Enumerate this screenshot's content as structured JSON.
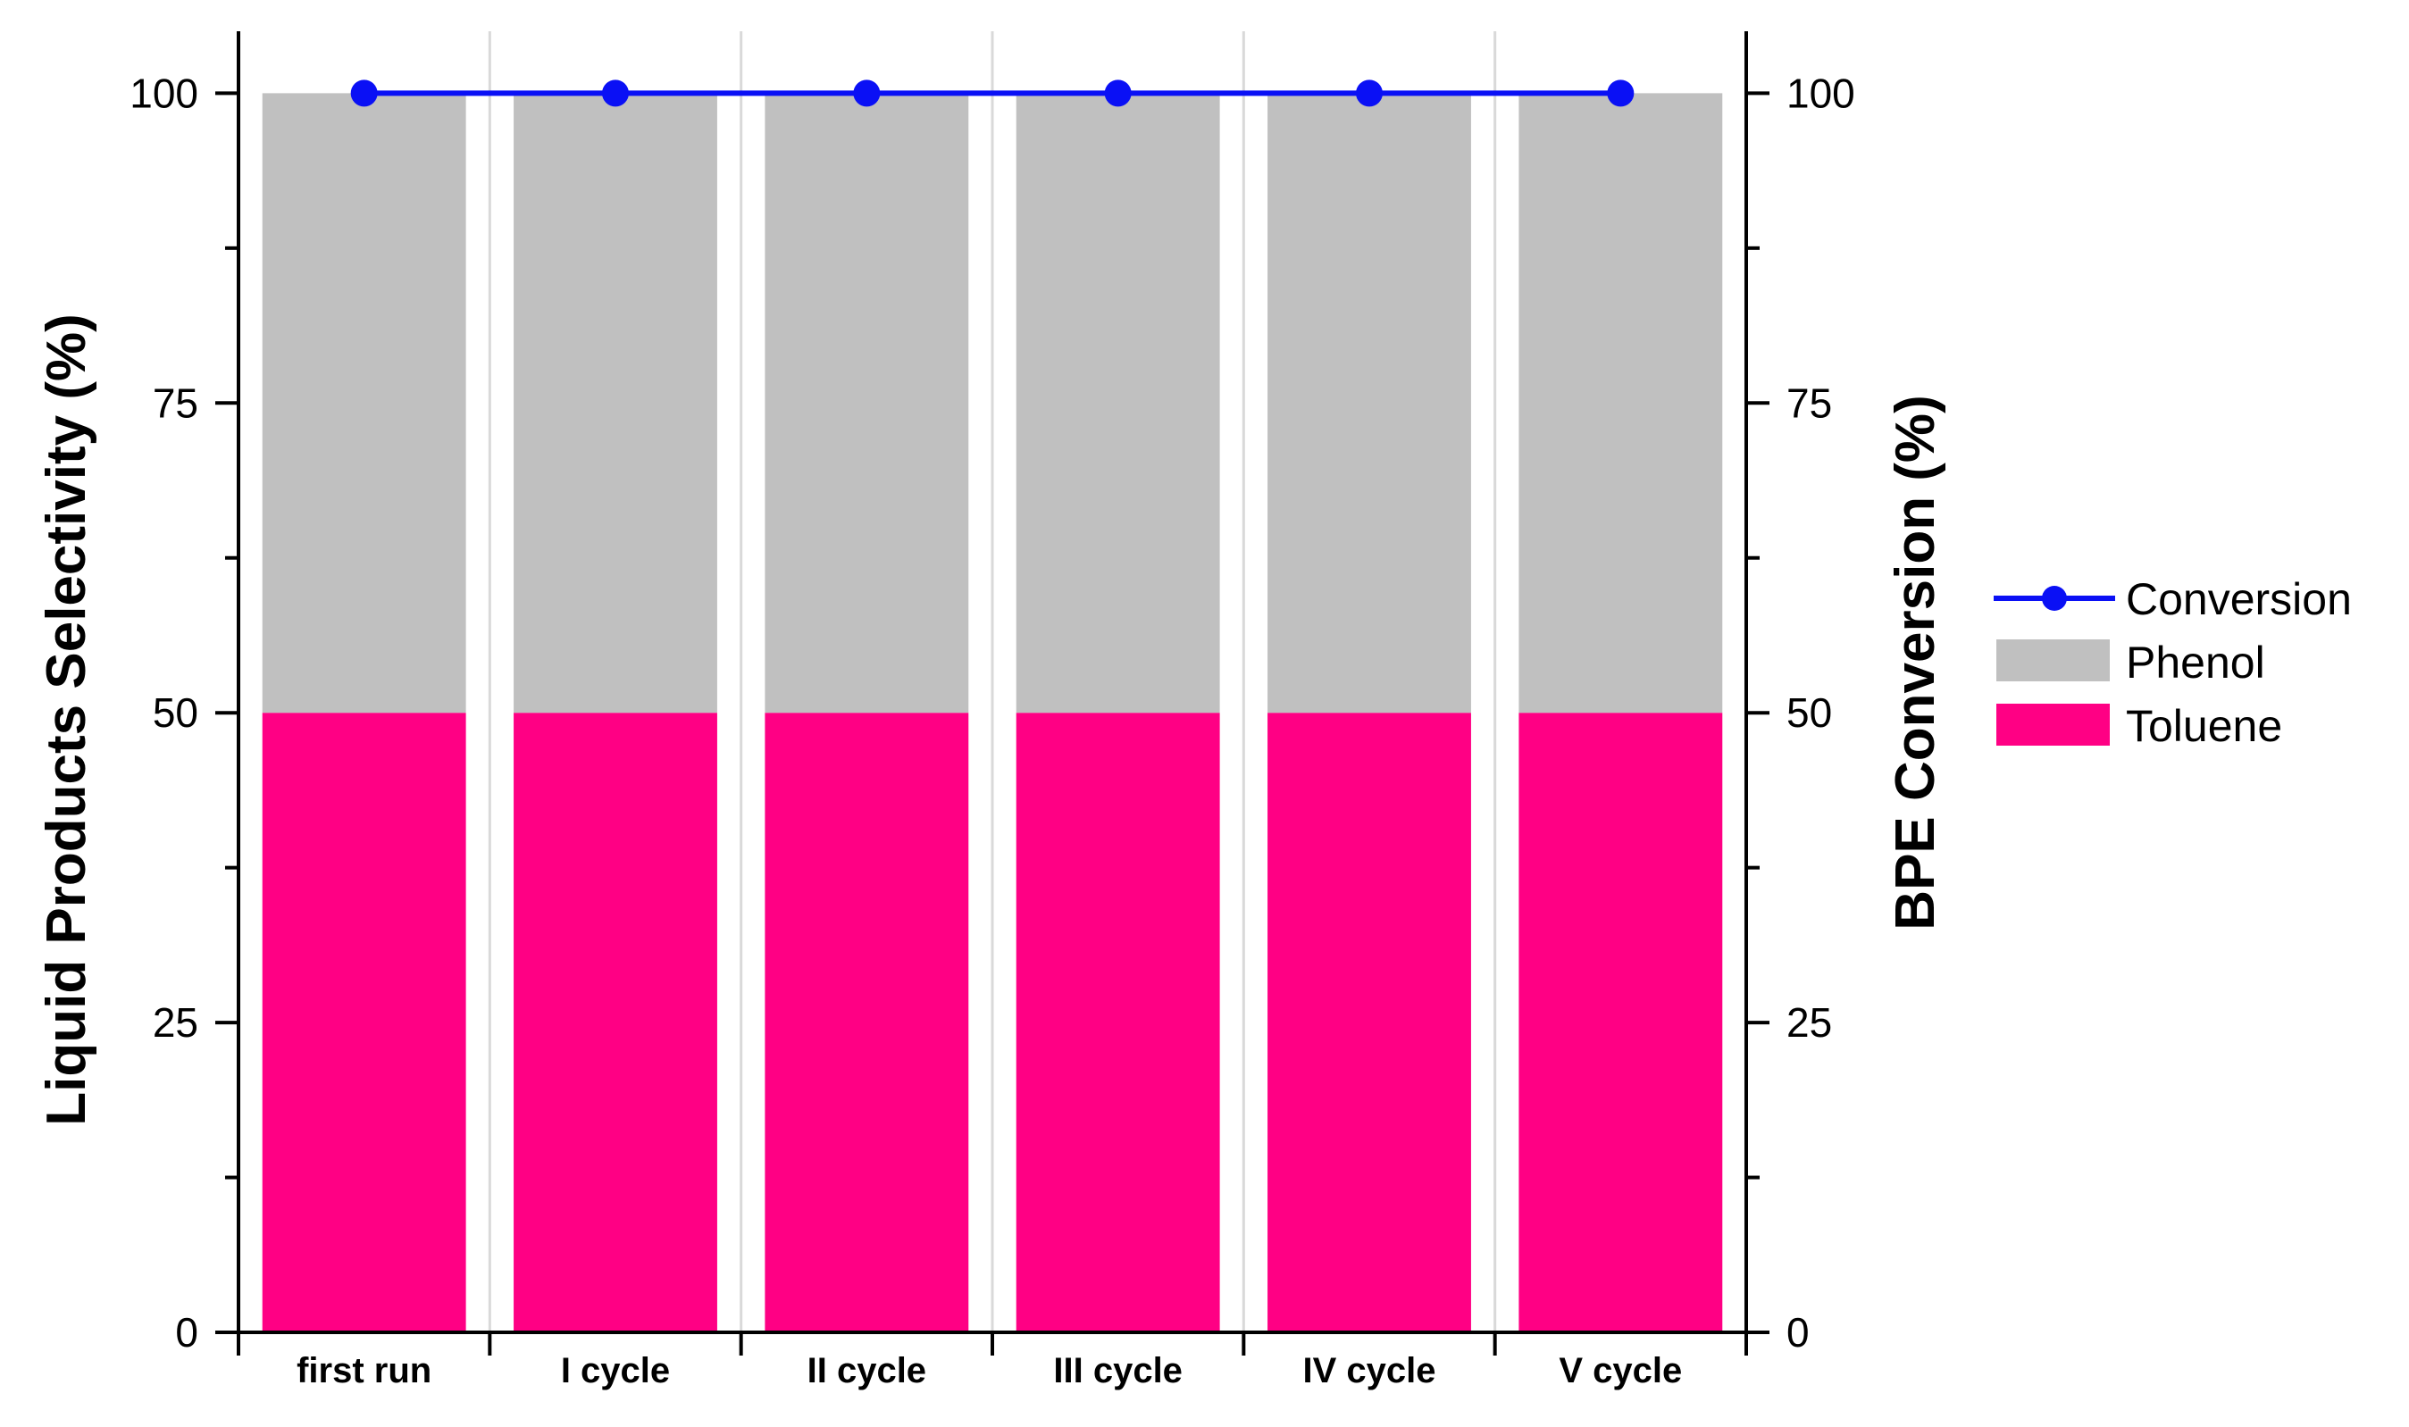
{
  "chart_data": {
    "type": "bar",
    "stacked": true,
    "categories": [
      "first run",
      "I cycle",
      "II cycle",
      "III cycle",
      "IV cycle",
      "V cycle"
    ],
    "series": [
      {
        "name": "Toluene",
        "axis": "left",
        "kind": "bar",
        "values": [
          50,
          50,
          50,
          50,
          50,
          50
        ]
      },
      {
        "name": "Phenol",
        "axis": "left",
        "kind": "bar",
        "values": [
          50,
          50,
          50,
          50,
          50,
          50
        ]
      },
      {
        "name": "Conversion",
        "axis": "right",
        "kind": "line-marker",
        "values": [
          100,
          100,
          100,
          100,
          100,
          100
        ]
      }
    ],
    "ylabel": "Liquid Products Selectivity (%)",
    "y2label": "BPE Conversion (%)",
    "xlabel": "",
    "ylim": [
      0,
      105
    ],
    "y2lim": [
      0,
      105
    ],
    "yticks": [
      0,
      25,
      50,
      75,
      100
    ],
    "y2ticks": [
      0,
      25,
      50,
      75,
      100
    ],
    "grid": "vertical separators",
    "legend": {
      "placement": "right",
      "entries": [
        "Conversion",
        "Phenol",
        "Toluene"
      ]
    },
    "colors": {
      "Toluene": "#FF0084",
      "Phenol": "#C0C0C0",
      "Conversion": "#0A10F5",
      "separator": "#D9D9D9",
      "axis": "#000000"
    }
  }
}
